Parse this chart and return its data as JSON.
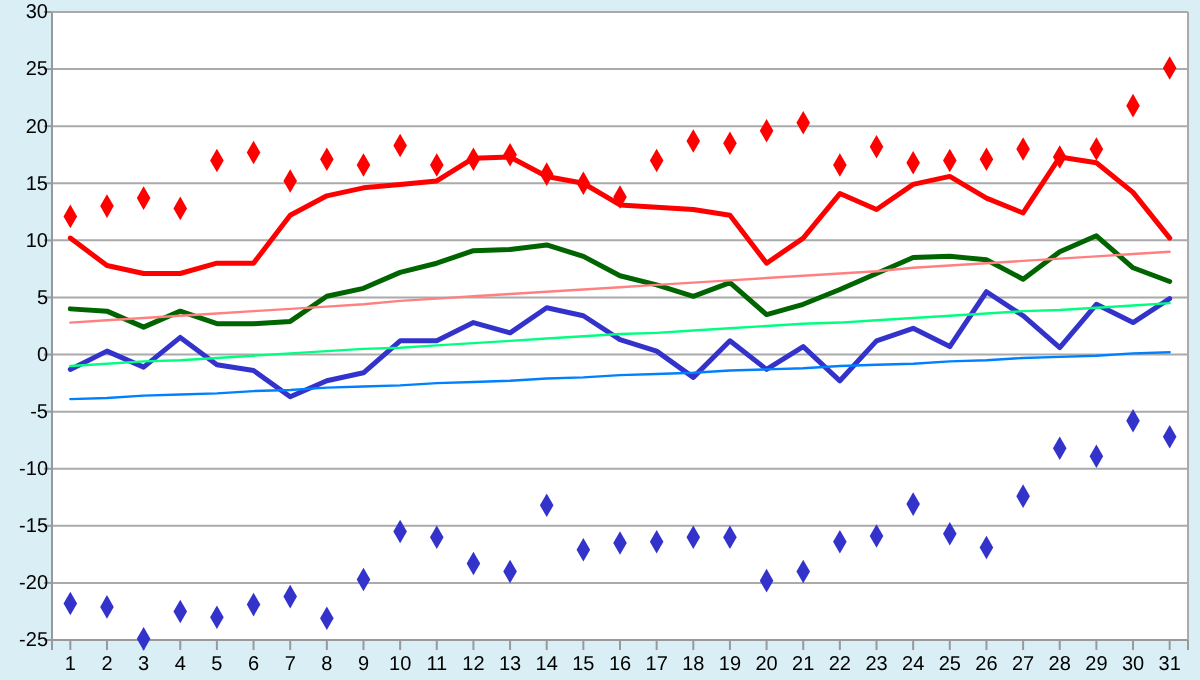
{
  "chart_data": {
    "type": "line",
    "x": [
      1,
      2,
      3,
      4,
      5,
      6,
      7,
      8,
      9,
      10,
      11,
      12,
      13,
      14,
      15,
      16,
      17,
      18,
      19,
      20,
      21,
      22,
      23,
      24,
      25,
      26,
      27,
      28,
      29,
      30,
      31
    ],
    "xlim": [
      0.5,
      31.5
    ],
    "xticks": [
      1,
      2,
      3,
      4,
      5,
      6,
      7,
      8,
      9,
      10,
      11,
      12,
      13,
      14,
      15,
      16,
      17,
      18,
      19,
      20,
      21,
      22,
      23,
      24,
      25,
      26,
      27,
      28,
      29,
      30,
      31
    ],
    "ylim": [
      -25,
      30
    ],
    "yticks": [
      -25,
      -20,
      -15,
      -10,
      -5,
      0,
      5,
      10,
      15,
      20,
      25,
      30
    ],
    "grid": "y",
    "line_style": "solid",
    "series": [
      {
        "type": "scatter",
        "marker": "diamond",
        "color": "#ff0000",
        "values": [
          12.1,
          13.0,
          13.7,
          12.8,
          17.0,
          17.7,
          15.2,
          17.1,
          16.6,
          18.3,
          16.6,
          17.1,
          17.5,
          15.8,
          15.0,
          13.8,
          17.0,
          18.7,
          18.5,
          19.6,
          20.3,
          16.6,
          18.2,
          16.8,
          17.0,
          17.1,
          18.0,
          17.3,
          18.0,
          21.8,
          25.1
        ]
      },
      {
        "type": "line",
        "marker": "none",
        "color": "#ff0000",
        "values": [
          10.2,
          7.8,
          7.1,
          7.1,
          8.0,
          8.0,
          12.2,
          13.9,
          14.6,
          14.9,
          15.2,
          17.2,
          17.3,
          15.6,
          15.0,
          13.1,
          12.9,
          12.7,
          12.2,
          8.0,
          10.2,
          14.1,
          12.7,
          14.9,
          15.6,
          13.7,
          12.4,
          17.3,
          16.8,
          14.2,
          10.2
        ]
      },
      {
        "type": "line",
        "marker": "none",
        "color": "#006400",
        "values": [
          4.0,
          3.8,
          2.4,
          3.8,
          2.7,
          2.7,
          2.9,
          5.1,
          5.8,
          7.2,
          8.0,
          9.1,
          9.2,
          9.6,
          8.6,
          6.9,
          6.1,
          5.1,
          6.3,
          3.5,
          4.4,
          5.7,
          7.1,
          8.5,
          8.6,
          8.3,
          6.6,
          9.0,
          10.4,
          7.6,
          6.4
        ]
      },
      {
        "type": "line",
        "marker": "none",
        "color": "#3333cc",
        "values": [
          -1.3,
          0.3,
          -1.1,
          1.5,
          -0.9,
          -1.4,
          -3.7,
          -2.3,
          -1.6,
          1.2,
          1.2,
          2.8,
          1.9,
          4.1,
          3.4,
          1.3,
          0.3,
          -2.0,
          1.2,
          -1.3,
          0.7,
          -2.3,
          1.2,
          2.3,
          0.7,
          5.5,
          3.4,
          0.6,
          4.4,
          2.8,
          4.9
        ]
      },
      {
        "type": "scatter",
        "marker": "diamond",
        "color": "#3333cc",
        "values": [
          -21.8,
          -22.1,
          -24.9,
          -22.5,
          -23.0,
          -21.9,
          -21.2,
          -23.1,
          -19.7,
          -15.5,
          -16.0,
          -18.3,
          -19.0,
          -13.2,
          -17.1,
          -16.5,
          -16.4,
          -16.0,
          -16.0,
          -19.8,
          -19.0,
          -16.4,
          -15.9,
          -13.1,
          -15.7,
          -16.9,
          -12.4,
          -8.2,
          -8.9,
          -5.8,
          -7.2
        ]
      },
      {
        "type": "line",
        "marker": "none",
        "color": "#ff8080",
        "x": [
          1,
          2,
          3,
          4,
          5,
          6,
          7,
          8,
          9,
          10,
          11,
          12,
          13,
          14,
          15,
          16,
          17,
          18,
          19,
          20,
          21,
          22,
          23,
          24,
          25,
          26,
          27,
          28,
          29,
          30,
          31
        ],
        "values": [
          2.8,
          3.0,
          3.2,
          3.4,
          3.6,
          3.8,
          4.0,
          4.2,
          4.4,
          4.7,
          4.9,
          5.1,
          5.3,
          5.5,
          5.7,
          5.9,
          6.1,
          6.3,
          6.5,
          6.7,
          6.9,
          7.1,
          7.3,
          7.6,
          7.8,
          8.0,
          8.2,
          8.4,
          8.6,
          8.8,
          9.0
        ]
      },
      {
        "type": "line",
        "marker": "none",
        "color": "#00ff80",
        "x": [
          1,
          2,
          3,
          4,
          5,
          6,
          7,
          8,
          9,
          10,
          11,
          12,
          13,
          14,
          15,
          16,
          17,
          18,
          19,
          20,
          21,
          22,
          23,
          24,
          25,
          26,
          27,
          28,
          29,
          30,
          31
        ],
        "values": [
          -1.0,
          -0.8,
          -0.6,
          -0.5,
          -0.3,
          -0.1,
          0.1,
          0.3,
          0.5,
          0.6,
          0.8,
          1.0,
          1.2,
          1.4,
          1.6,
          1.8,
          1.9,
          2.1,
          2.3,
          2.5,
          2.7,
          2.8,
          3.0,
          3.2,
          3.4,
          3.6,
          3.8,
          3.9,
          4.1,
          4.3,
          4.5
        ]
      },
      {
        "type": "line",
        "marker": "none",
        "color": "#0080ff",
        "x": [
          1,
          2,
          3,
          4,
          5,
          6,
          7,
          8,
          9,
          10,
          11,
          12,
          13,
          14,
          15,
          16,
          17,
          18,
          19,
          20,
          21,
          22,
          23,
          24,
          25,
          26,
          27,
          28,
          29,
          30,
          31
        ],
        "values": [
          -3.9,
          -3.8,
          -3.6,
          -3.5,
          -3.4,
          -3.2,
          -3.1,
          -2.9,
          -2.8,
          -2.7,
          -2.5,
          -2.4,
          -2.3,
          -2.1,
          -2.0,
          -1.8,
          -1.7,
          -1.6,
          -1.4,
          -1.3,
          -1.2,
          -1.0,
          -0.9,
          -0.8,
          -0.6,
          -0.5,
          -0.3,
          -0.2,
          -0.1,
          0.1,
          0.2
        ]
      }
    ]
  }
}
